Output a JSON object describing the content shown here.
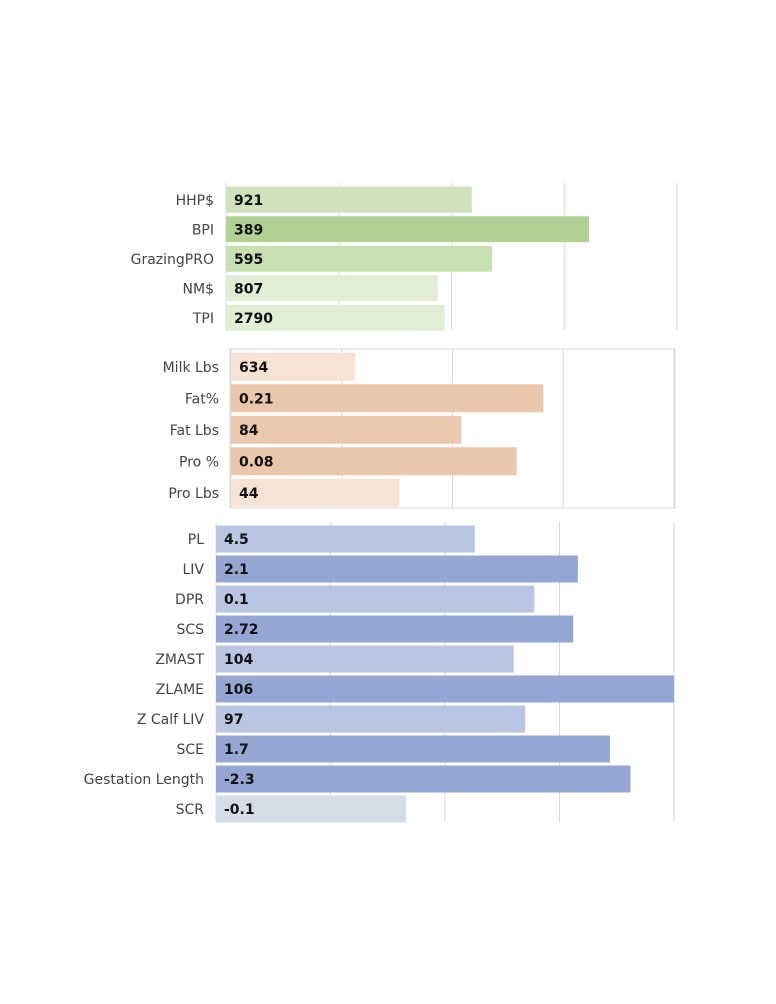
{
  "chart_data": [
    {
      "type": "bar",
      "orientation": "horizontal",
      "categories": [
        "HHP$",
        "BPI",
        "GrazingPRO",
        "NM$",
        "TPI"
      ],
      "value_labels": [
        "921",
        "389",
        "595",
        "807",
        "2790"
      ],
      "bar_fill_fraction": [
        0.545,
        0.805,
        0.59,
        0.47,
        0.485
      ],
      "colors": [
        "#cfe2bb",
        "#b2d194",
        "#c8dfb2",
        "#e1edd5",
        "#e1edd5"
      ],
      "grid": true
    },
    {
      "type": "bar",
      "orientation": "horizontal",
      "categories": [
        "Milk Lbs",
        "Fat%",
        "Fat Lbs",
        "Pro %",
        "Pro Lbs"
      ],
      "value_labels": [
        "634",
        "0.21",
        "84",
        "0.08",
        "44"
      ],
      "bar_fill_fraction": [
        0.28,
        0.705,
        0.52,
        0.645,
        0.38
      ],
      "colors": [
        "#f6e3d5",
        "#eac7ab",
        "#ecc9ae",
        "#eac7ab",
        "#f6e3d5"
      ],
      "grid": true
    },
    {
      "type": "bar",
      "orientation": "horizontal",
      "categories": [
        "PL",
        "LIV",
        "DPR",
        "SCS",
        "ZMAST",
        "ZLAME",
        "Z Calf LIV",
        "SCE",
        "Gestation Length",
        "SCR"
      ],
      "value_labels": [
        "4.5",
        "2.1",
        "0.1",
        "2.72",
        "104",
        "106",
        "97",
        "1.7",
        "-2.3",
        "-0.1"
      ],
      "bar_fill_fraction": [
        0.565,
        0.79,
        0.695,
        0.78,
        0.65,
        1.0,
        0.675,
        0.86,
        0.905,
        0.415
      ],
      "colors": [
        "#b8c5e3",
        "#95a6d3",
        "#b8c5e3",
        "#95a6d3",
        "#b8c5e3",
        "#95a6d3",
        "#b8c5e3",
        "#95a6d3",
        "#95a6d3",
        "#d6dbe8"
      ],
      "grid": true
    }
  ]
}
